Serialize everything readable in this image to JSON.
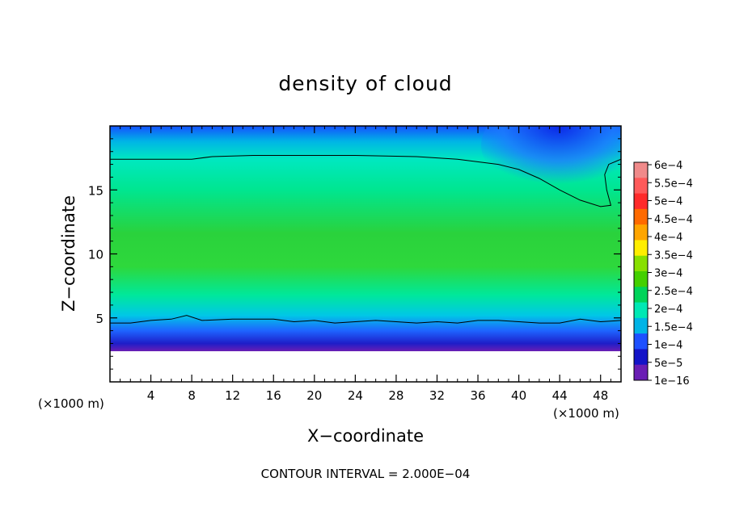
{
  "chart_data": {
    "type": "heatmap",
    "title": "density of cloud",
    "xlabel": "X−coordinate",
    "ylabel": "Z−coordinate",
    "x_unit_left": "(×1000 m)",
    "x_unit_right": "(×1000 m)",
    "xlim": [
      0,
      50
    ],
    "ylim": [
      0,
      20
    ],
    "xticks": [
      4,
      8,
      12,
      16,
      20,
      24,
      28,
      32,
      36,
      40,
      44,
      48
    ],
    "xtick_labels": [
      "4",
      "8",
      "12",
      "16",
      "20",
      "24",
      "28",
      "32",
      "36",
      "40",
      "44",
      "48"
    ],
    "yticks": [
      5,
      10,
      15
    ],
    "ytick_labels": [
      "5",
      "10",
      "15"
    ],
    "footer": "CONTOUR INTERVAL = 2.000E−04",
    "colorbar": {
      "labels": [
        "6e−4",
        "5.5e−4",
        "5e−4",
        "4.5e−4",
        "4e−4",
        "3.5e−4",
        "3e−4",
        "2.5e−4",
        "2e−4",
        "1.5e−4",
        "1e−4",
        "5e−5",
        "1e−16"
      ],
      "levels": [
        0.0006,
        0.00055,
        0.0005,
        0.00045,
        0.0004,
        0.00035,
        0.0003,
        0.00025,
        0.0002,
        0.00015,
        0.0001,
        5e-05,
        1e-16
      ],
      "colors": [
        "#f08a8a",
        "#ff5a5a",
        "#ff2a2a",
        "#ff6a00",
        "#ffa500",
        "#ffee00",
        "#88e000",
        "#44d000",
        "#00d45a",
        "#00e8b4",
        "#00b4e6",
        "#1e50ff",
        "#1414c8",
        "#6a1eb4"
      ]
    },
    "contour_level": 0.0002,
    "cloud_base_z": 2.0,
    "contour_lower_z": [
      [
        0,
        4.6
      ],
      [
        2,
        4.6
      ],
      [
        4,
        4.8
      ],
      [
        6,
        4.9
      ],
      [
        7.5,
        5.2
      ],
      [
        9,
        4.8
      ],
      [
        12,
        4.9
      ],
      [
        16,
        4.9
      ],
      [
        18,
        4.7
      ],
      [
        20,
        4.8
      ],
      [
        22,
        4.6
      ],
      [
        24,
        4.7
      ],
      [
        26,
        4.8
      ],
      [
        28,
        4.7
      ],
      [
        30,
        4.6
      ],
      [
        32,
        4.7
      ],
      [
        34,
        4.6
      ],
      [
        36,
        4.8
      ],
      [
        38,
        4.8
      ],
      [
        40,
        4.7
      ],
      [
        42,
        4.6
      ],
      [
        44,
        4.6
      ],
      [
        46,
        4.9
      ],
      [
        48,
        4.7
      ],
      [
        50,
        4.8
      ]
    ],
    "contour_upper_z": [
      [
        0,
        17.4
      ],
      [
        4,
        17.4
      ],
      [
        8,
        17.4
      ],
      [
        10,
        17.6
      ],
      [
        14,
        17.7
      ],
      [
        24,
        17.7
      ],
      [
        30,
        17.6
      ],
      [
        34,
        17.4
      ],
      [
        38,
        17.0
      ],
      [
        40,
        16.6
      ],
      [
        42,
        15.9
      ],
      [
        44,
        15.0
      ],
      [
        46,
        14.2
      ],
      [
        48,
        13.7
      ],
      [
        49,
        13.8
      ],
      [
        48.6,
        15.0
      ],
      [
        48.4,
        16.2
      ],
      [
        48.8,
        17.0
      ],
      [
        50,
        17.4
      ]
    ]
  }
}
